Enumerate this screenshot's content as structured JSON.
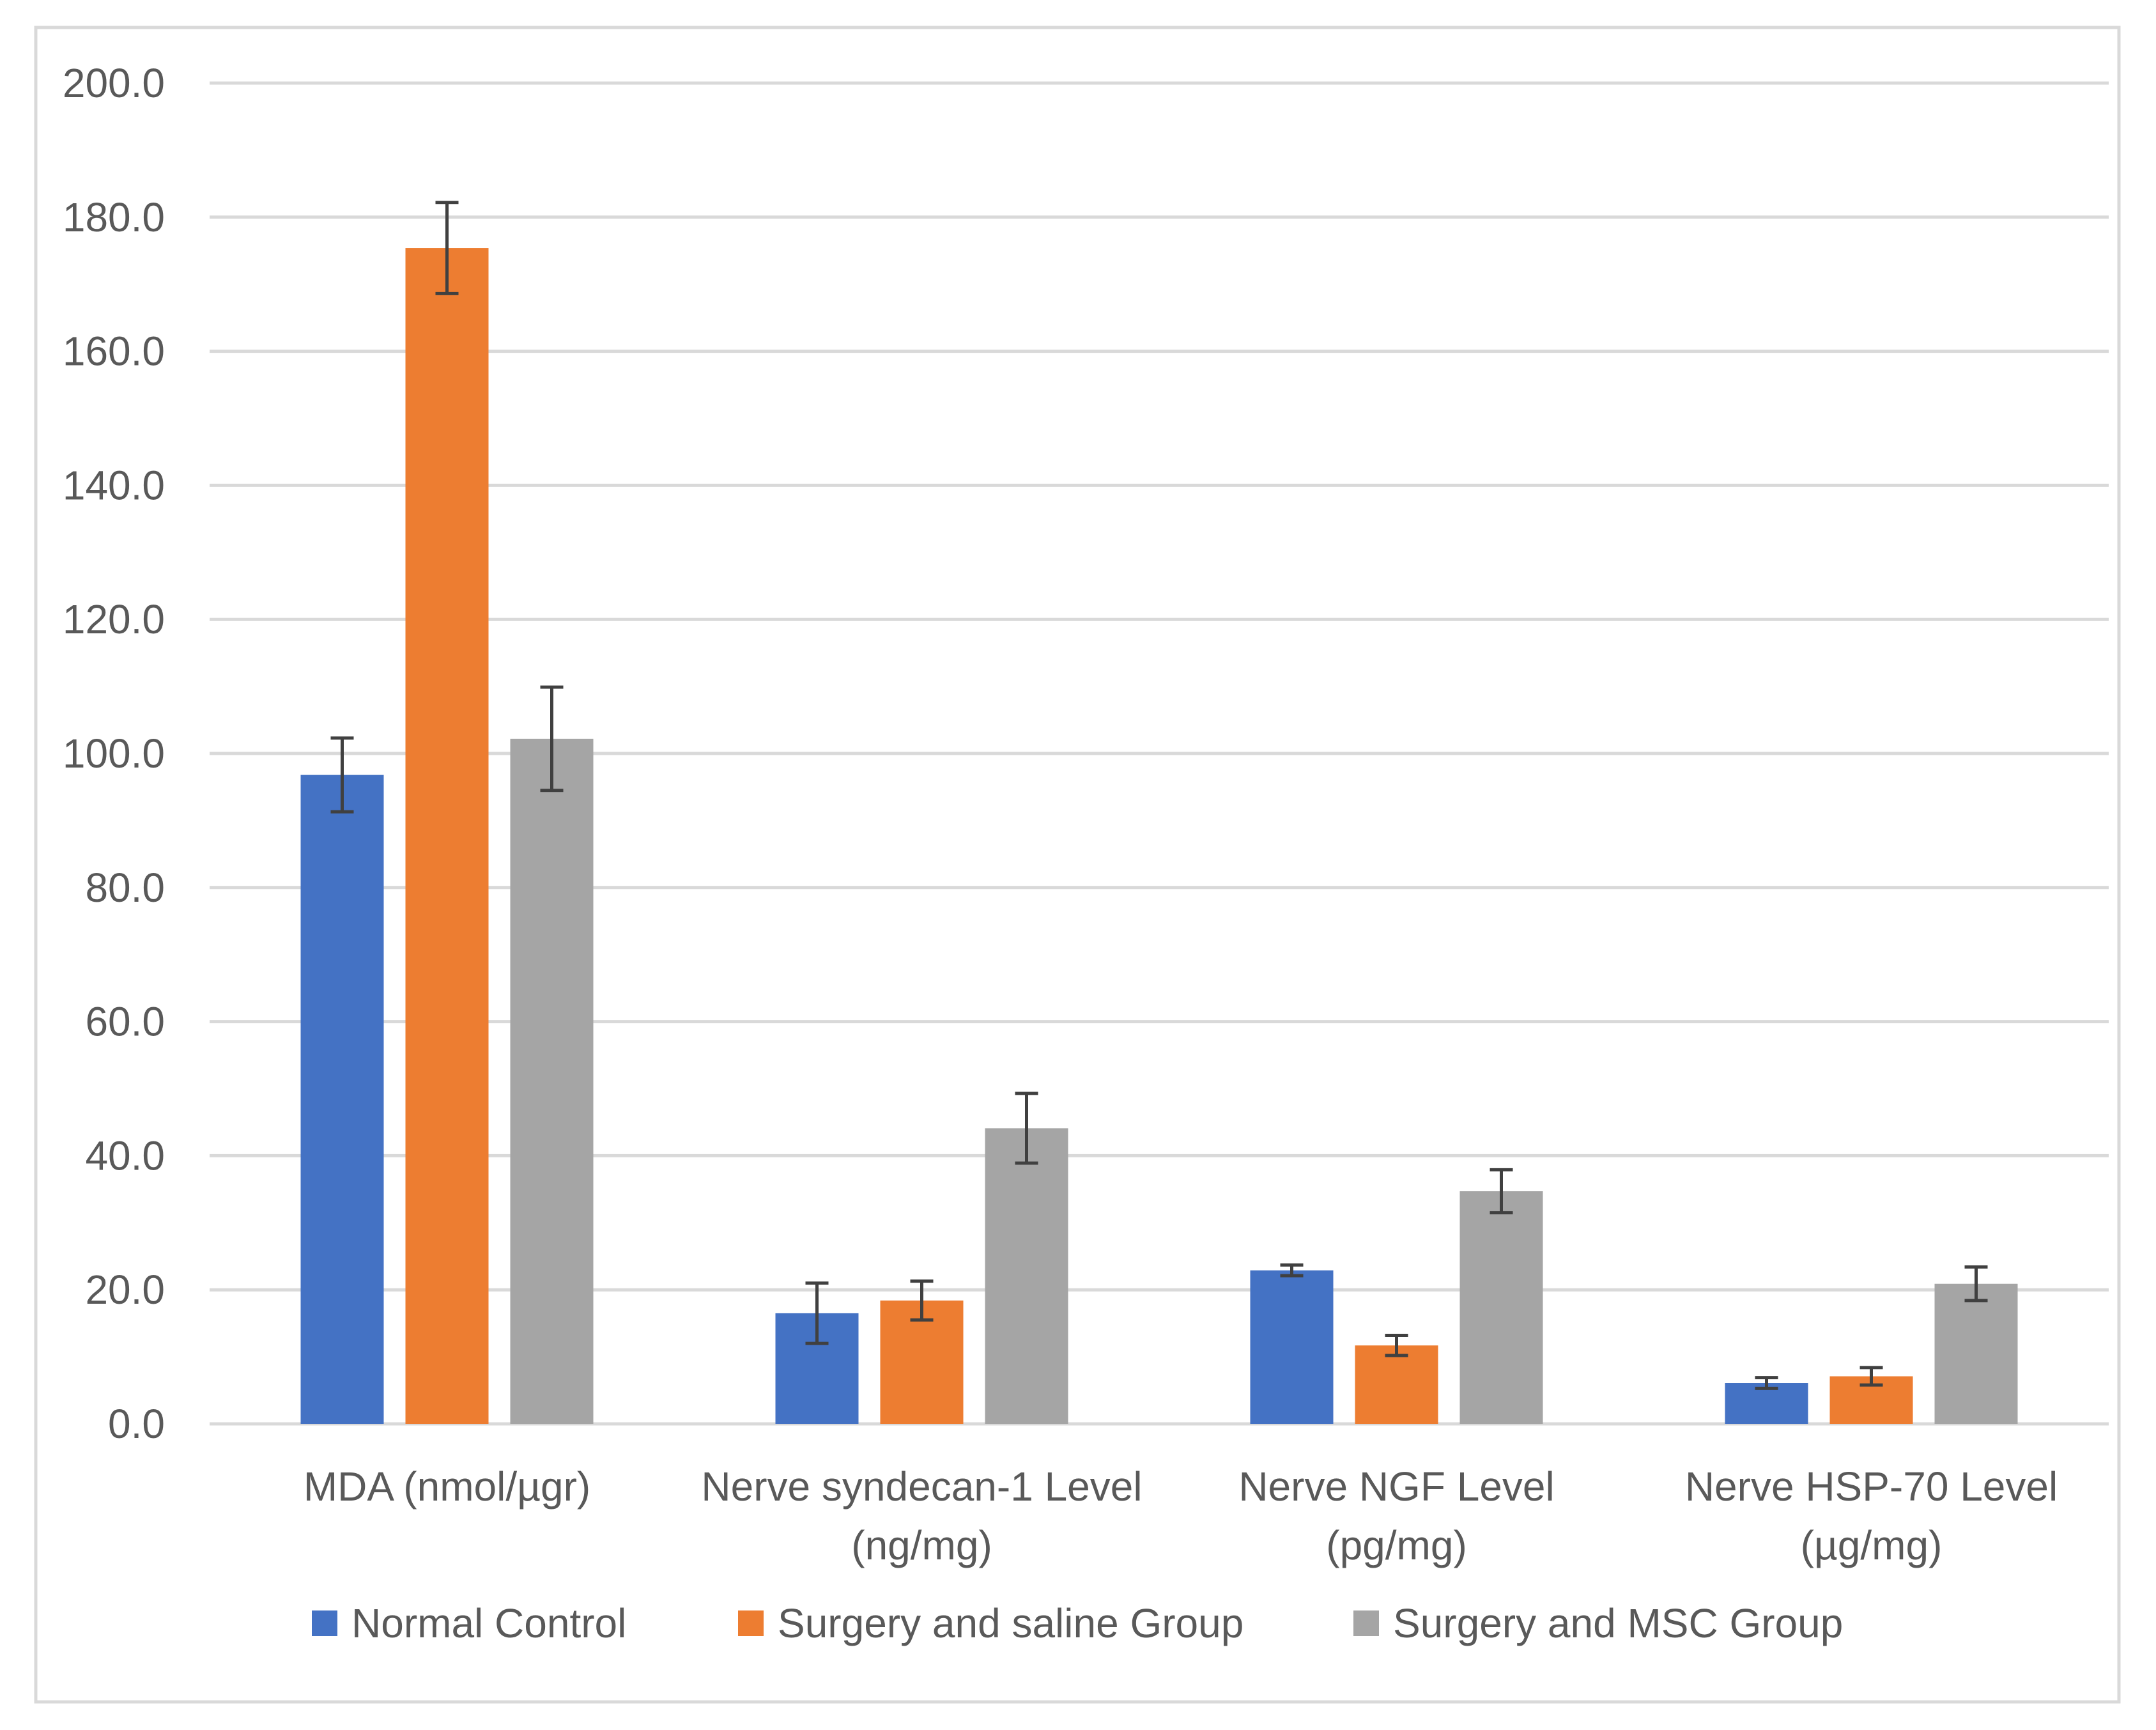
{
  "chart_data": {
    "type": "bar",
    "title": "",
    "xlabel": "",
    "ylabel": "",
    "ylim": [
      0,
      200
    ],
    "yticks": [
      "0.0",
      "20.0",
      "40.0",
      "60.0",
      "80.0",
      "100.0",
      "120.0",
      "140.0",
      "160.0",
      "180.0",
      "200.0"
    ],
    "grid": true,
    "legend_position": "bottom",
    "categories": [
      [
        "MDA (nmol/µgr)"
      ],
      [
        "Nerve  syndecan-1 Level",
        "(ng/mg)"
      ],
      [
        "Nerve  NGF Level",
        "(pg/mg)"
      ],
      [
        "Nerve HSP-70 Level",
        "(µg/mg)"
      ]
    ],
    "series": [
      {
        "name": "Normal Control",
        "color": "#4472C4",
        "values": [
          96.8,
          16.5,
          22.9,
          6.1
        ],
        "errors": [
          5.5,
          4.5,
          0.8,
          0.8
        ]
      },
      {
        "name": "Surgery and saline Group",
        "color": "#ED7D31",
        "values": [
          175.4,
          18.4,
          11.7,
          7.1
        ],
        "errors": [
          6.8,
          2.9,
          1.5,
          1.3
        ]
      },
      {
        "name": "Surgery and MSC  Group",
        "color": "#A5A5A5",
        "values": [
          102.2,
          44.1,
          34.7,
          20.9
        ],
        "errors": [
          7.7,
          5.2,
          3.2,
          2.5
        ]
      }
    ]
  }
}
